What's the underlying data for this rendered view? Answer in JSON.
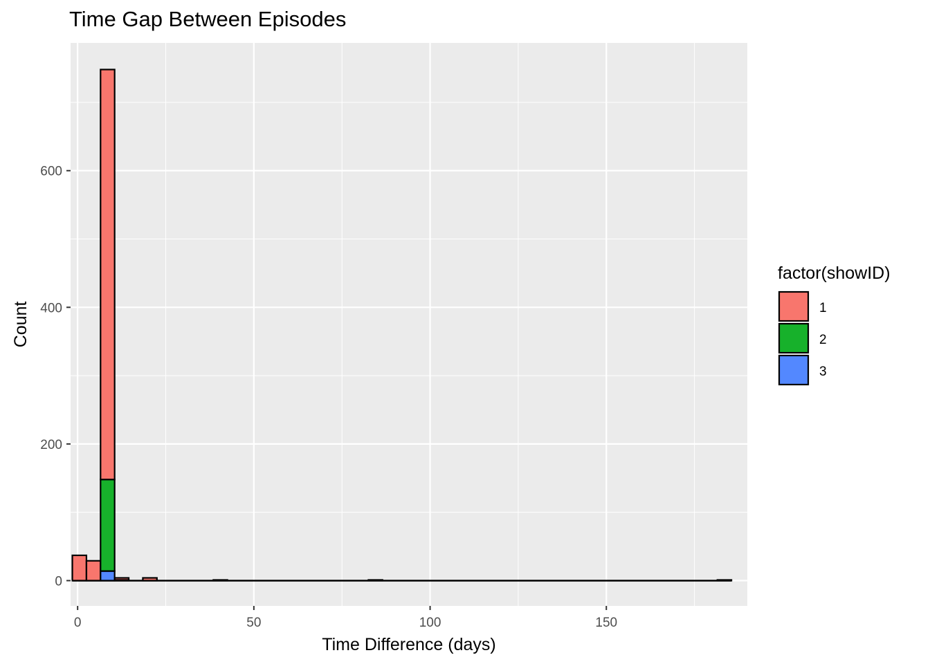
{
  "chart_data": {
    "type": "bar",
    "subtype": "stacked-histogram",
    "title": "Time Gap Between Episodes",
    "xlabel": "Time Difference (days)",
    "ylabel": "Count",
    "xlim": [
      -2,
      190
    ],
    "ylim": [
      -37,
      787
    ],
    "x_ticks": [
      0,
      50,
      100,
      150
    ],
    "y_ticks": [
      0,
      200,
      400,
      600
    ],
    "grid": true,
    "legend": {
      "title": "factor(showID)",
      "position": "right"
    },
    "bins": [
      {
        "x0": -1.5,
        "x1": 2.5
      },
      {
        "x0": 2.5,
        "x1": 6.5
      },
      {
        "x0": 6.5,
        "x1": 10.5
      },
      {
        "x0": 10.5,
        "x1": 14.5
      },
      {
        "x0": 14.5,
        "x1": 18.5
      },
      {
        "x0": 18.5,
        "x1": 22.5
      },
      {
        "x0": 38.5,
        "x1": 42.5
      },
      {
        "x0": 82.5,
        "x1": 86.5
      },
      {
        "x0": 181.5,
        "x1": 185.5
      }
    ],
    "series": [
      {
        "name": "1",
        "color": "#F8766D",
        "values": [
          37,
          29,
          600,
          3,
          0,
          4,
          1,
          1,
          1
        ]
      },
      {
        "name": "2",
        "color": "#17B12B",
        "values": [
          0,
          0,
          134,
          1,
          0,
          0,
          0,
          0,
          0
        ]
      },
      {
        "name": "3",
        "color": "#5388FF",
        "values": [
          0,
          0,
          14,
          0,
          0,
          0,
          0,
          0,
          0
        ]
      }
    ]
  }
}
